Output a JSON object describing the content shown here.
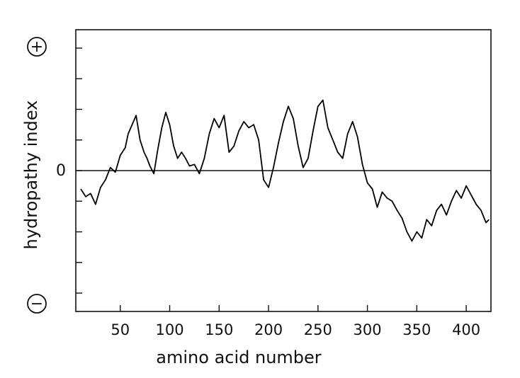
{
  "chart_data": {
    "type": "line",
    "title": "",
    "xlabel": "amino acid number",
    "ylabel": "hydropathy index",
    "xlim": [
      5,
      425
    ],
    "ylim": [
      -4.6,
      4.6
    ],
    "x_ticks": [
      50,
      100,
      150,
      200,
      250,
      300,
      350,
      400
    ],
    "x_tick_labels": [
      "50",
      "100",
      "150",
      "200",
      "250",
      "300",
      "350",
      "400"
    ],
    "y_tick_values": [
      -4,
      -3,
      -2,
      -1,
      0,
      1,
      2,
      3,
      4
    ],
    "y_zero_label": "0",
    "y_positive_label": "+",
    "y_negative_label": "−",
    "zero_line": true,
    "grid": false,
    "legend": "none",
    "line_color": "#000000",
    "series": [
      {
        "values_x": [
          10,
          15,
          20,
          25,
          30,
          35,
          40,
          45,
          50,
          55,
          58,
          62,
          66,
          70,
          74,
          77,
          80,
          84,
          88,
          92,
          96,
          100,
          104,
          108,
          112,
          116,
          120,
          125,
          130,
          135,
          140,
          145,
          150,
          155,
          160,
          165,
          170,
          175,
          180,
          185,
          190,
          195,
          200,
          205,
          210,
          215,
          220,
          225,
          230,
          235,
          240,
          245,
          250,
          255,
          260,
          265,
          270,
          275,
          280,
          285,
          290,
          295,
          300,
          305,
          310,
          315,
          320,
          325,
          330,
          335,
          340,
          345,
          350,
          355,
          360,
          365,
          370,
          375,
          380,
          385,
          390,
          395,
          400,
          405,
          410,
          415,
          420,
          423
        ],
        "values_y": [
          -0.6,
          -0.85,
          -0.75,
          -1.1,
          -0.55,
          -0.3,
          0.1,
          -0.05,
          0.5,
          0.75,
          1.2,
          1.5,
          1.8,
          1.0,
          0.6,
          0.4,
          0.15,
          -0.1,
          0.7,
          1.4,
          1.9,
          1.5,
          0.8,
          0.4,
          0.6,
          0.4,
          0.15,
          0.2,
          -0.1,
          0.4,
          1.2,
          1.7,
          1.4,
          1.8,
          0.6,
          0.8,
          1.3,
          1.6,
          1.4,
          1.5,
          1.0,
          -0.3,
          -0.55,
          0.1,
          0.9,
          1.6,
          2.1,
          1.7,
          0.8,
          0.1,
          0.4,
          1.3,
          2.1,
          2.3,
          1.4,
          1.0,
          0.6,
          0.4,
          1.2,
          1.6,
          1.1,
          0.2,
          -0.4,
          -0.6,
          -1.2,
          -0.7,
          -0.9,
          -1.0,
          -1.3,
          -1.55,
          -2.0,
          -2.3,
          -2.0,
          -2.2,
          -1.6,
          -1.8,
          -1.3,
          -1.1,
          -1.45,
          -1.0,
          -0.65,
          -0.9,
          -0.5,
          -0.8,
          -1.1,
          -1.3,
          -1.7,
          -1.6
        ]
      }
    ]
  }
}
